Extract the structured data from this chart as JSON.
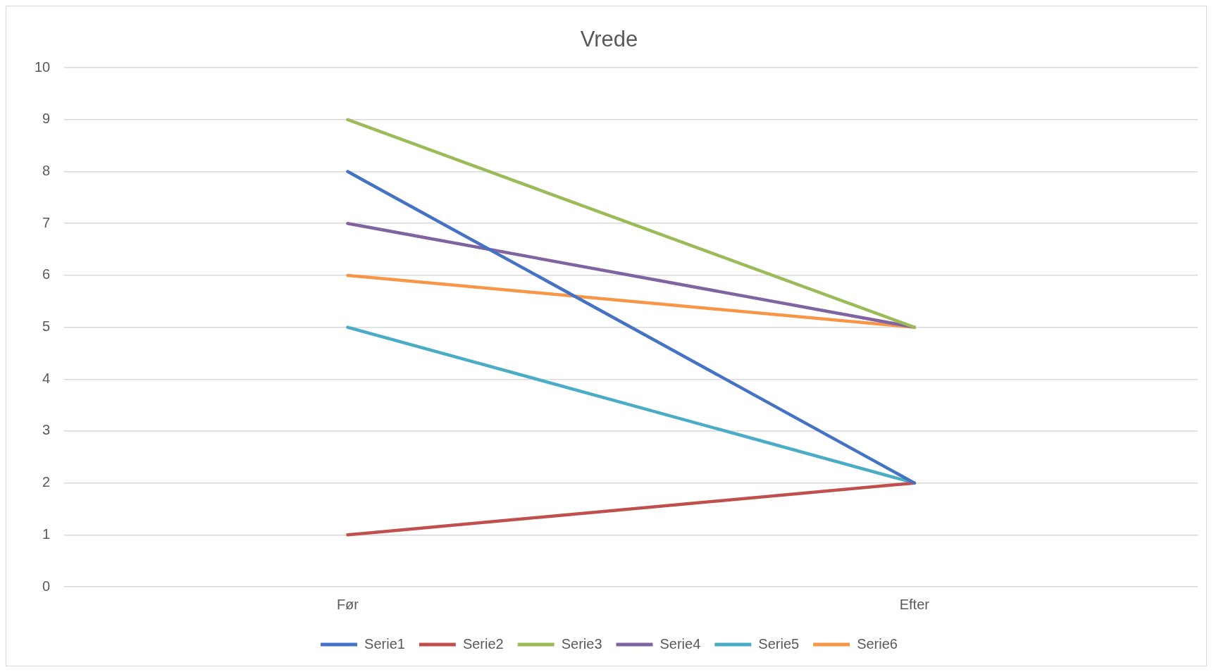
{
  "chart_data": {
    "type": "line",
    "title": "Vrede",
    "categories": [
      "Før",
      "Efter"
    ],
    "series": [
      {
        "name": "Serie1",
        "color": "#4472c4",
        "values": [
          8,
          2
        ]
      },
      {
        "name": "Serie2",
        "color": "#c0504d",
        "values": [
          1,
          2
        ]
      },
      {
        "name": "Serie3",
        "color": "#9bbb59",
        "values": [
          9,
          5
        ]
      },
      {
        "name": "Serie4",
        "color": "#8064a2",
        "values": [
          7,
          5
        ]
      },
      {
        "name": "Serie5",
        "color": "#4bacc6",
        "values": [
          5,
          2
        ]
      },
      {
        "name": "Serie6",
        "color": "#f79646",
        "values": [
          6,
          5
        ]
      }
    ],
    "ylim": [
      0,
      10
    ],
    "yticks": [
      0,
      1,
      2,
      3,
      4,
      5,
      6,
      7,
      8,
      9,
      10
    ],
    "grid": "y",
    "legend": "bottom",
    "marker": "none",
    "line_style": "solid"
  }
}
